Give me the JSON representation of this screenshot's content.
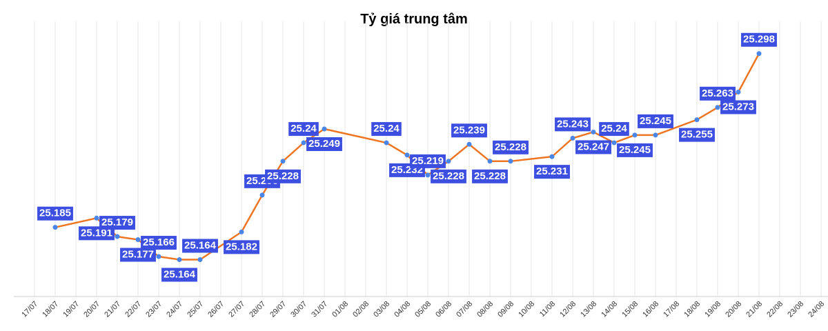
{
  "chart_data": {
    "type": "line",
    "title": "Tỷ giá trung tâm",
    "categories": [
      "17/07",
      "18/07",
      "19/07",
      "20/07",
      "21/07",
      "22/07",
      "23/07",
      "24/07",
      "25/07",
      "26/07",
      "27/07",
      "28/07",
      "29/07",
      "30/07",
      "31/07",
      "01/08",
      "02/08",
      "03/08",
      "04/08",
      "05/08",
      "06/08",
      "07/08",
      "08/08",
      "09/08",
      "10/08",
      "11/08",
      "12/08",
      "13/08",
      "14/08",
      "15/08",
      "16/08",
      "17/08",
      "18/08",
      "19/08",
      "20/08",
      "21/08",
      "22/08",
      "23/08",
      "24/08"
    ],
    "series": [
      {
        "color": "#ee7623",
        "values": [
          null,
          25.185,
          null,
          25.191,
          25.179,
          25.177,
          25.166,
          25.164,
          25.164,
          null,
          25.182,
          25.206,
          25.228,
          25.24,
          25.249,
          null,
          null,
          25.24,
          25.232,
          25.219,
          25.228,
          25.239,
          25.228,
          25.228,
          null,
          25.231,
          25.243,
          25.247,
          25.24,
          25.245,
          25.245,
          null,
          25.255,
          25.263,
          25.273,
          25.298,
          null,
          null,
          null
        ]
      }
    ],
    "marker_color": "#4a86e8",
    "label_color": "#3d4fe0",
    "ylim": [
      25.14,
      25.31
    ],
    "grid": true
  }
}
